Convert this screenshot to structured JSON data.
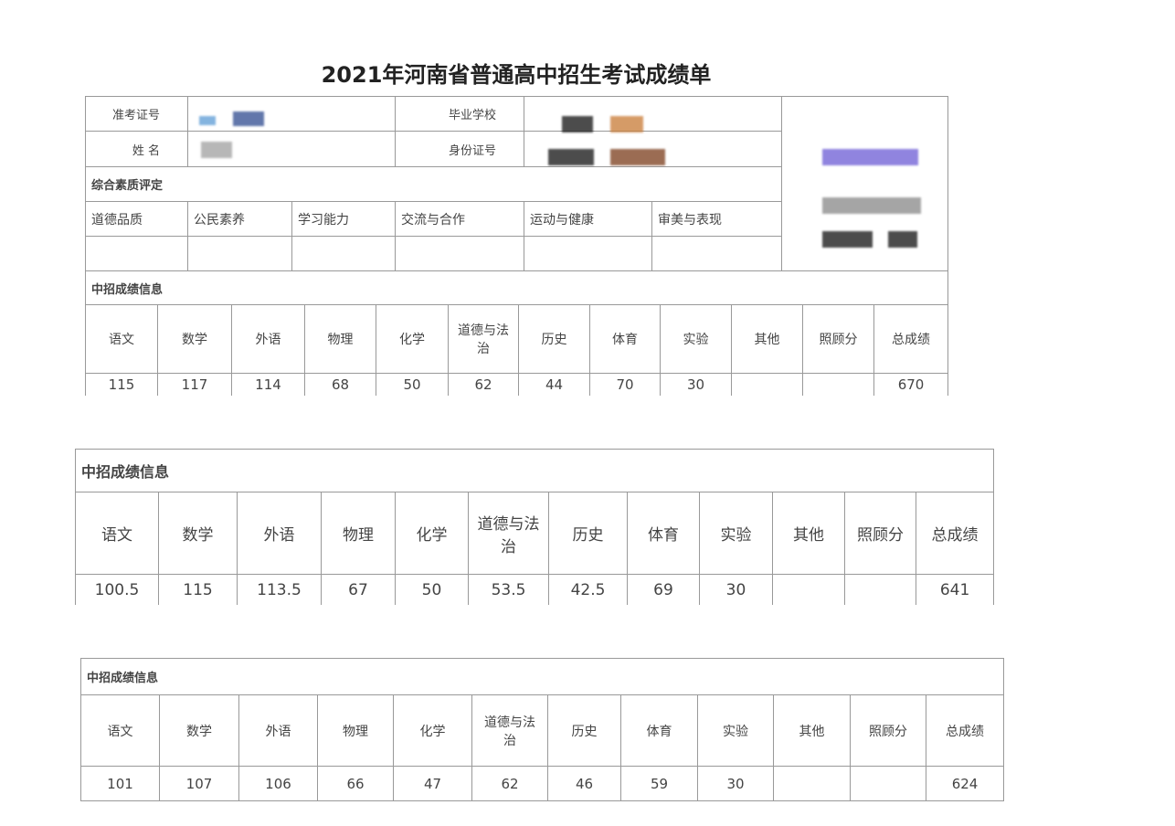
{
  "title": "2021年河南省普通高中招生考试成绩单",
  "form": {
    "exam_id_label": "准考证号",
    "name_label": "姓  名",
    "school_label": "毕业学校",
    "id_card_label": "身份证号",
    "quality_section": "综合素质评定",
    "quality_items": [
      "道德品质",
      "公民素养",
      "学习能力",
      "交流与合作",
      "运动与健康",
      "审美与表现"
    ]
  },
  "subjects": [
    "语文",
    "数学",
    "外语",
    "物理",
    "化学",
    "道德与法治",
    "历史",
    "体育",
    "实验",
    "其他",
    "照顾分",
    "总成绩"
  ],
  "score_tables": [
    {
      "section": "中招成绩信息",
      "scores": [
        "115",
        "117",
        "114",
        "68",
        "50",
        "62",
        "44",
        "70",
        "30",
        "",
        "",
        "670"
      ]
    },
    {
      "section": "中招成绩信息",
      "scores": [
        "100.5",
        "115",
        "113.5",
        "67",
        "50",
        "53.5",
        "42.5",
        "69",
        "30",
        "",
        "",
        "641"
      ]
    },
    {
      "section": "中招成绩信息",
      "scores": [
        "101",
        "107",
        "106",
        "66",
        "47",
        "62",
        "46",
        "59",
        "30",
        "",
        "",
        "624"
      ]
    }
  ],
  "redaction_colors": [
    "#5b9bd5",
    "#2e4a8f",
    "#a0a0a0",
    "#111111",
    "#c87a35",
    "#7a3b1a",
    "#6b5bd5",
    "#888888",
    "#b09070"
  ]
}
